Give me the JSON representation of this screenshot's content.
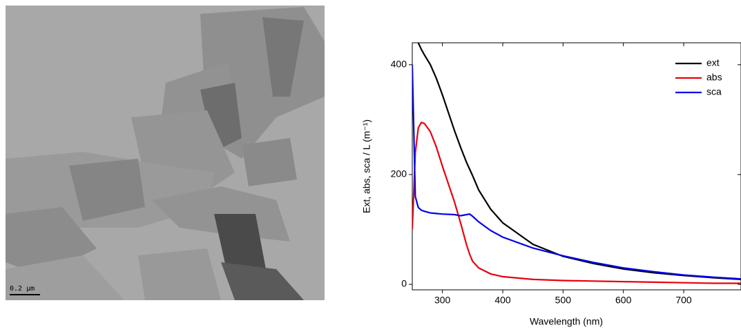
{
  "image": {
    "scale_bar": "0.2 µm"
  },
  "chart_data": {
    "type": "line",
    "x_label": "Wavelength (nm)",
    "y_label": "Ext, abs, sca / L (m⁻¹)",
    "x": [
      250,
      255,
      260,
      265,
      270,
      280,
      290,
      300,
      320,
      330,
      340,
      345,
      350,
      360,
      380,
      400,
      450,
      500,
      550,
      600,
      650,
      700,
      750,
      795
    ],
    "series": [
      {
        "name": "ext",
        "color": "#000000",
        "values": [
          null,
          null,
          440,
          428,
          418,
          400,
          375,
          345,
          280,
          250,
          222,
          210,
          198,
          172,
          137,
          112,
          73,
          51,
          38,
          28,
          21,
          16,
          12,
          9
        ]
      },
      {
        "name": "abs",
        "color": "#e8000b",
        "values": [
          100,
          240,
          285,
          295,
          293,
          278,
          250,
          215,
          150,
          112,
          72,
          55,
          42,
          30,
          19,
          14,
          9,
          7,
          6,
          5,
          4,
          3,
          2,
          2
        ]
      },
      {
        "name": "sca",
        "color": "#0000ee",
        "values": [
          400,
          160,
          140,
          135,
          133,
          130,
          129,
          128,
          127,
          125,
          127,
          128,
          124,
          114,
          98,
          86,
          66,
          52,
          40,
          30,
          23,
          17,
          13,
          10
        ]
      }
    ],
    "xlim": [
      250,
      795
    ],
    "ylim": [
      -10,
      440
    ],
    "xticks": [
      300,
      400,
      500,
      600,
      700
    ],
    "yticks": [
      0,
      200,
      400
    ],
    "legend": "top-right"
  }
}
